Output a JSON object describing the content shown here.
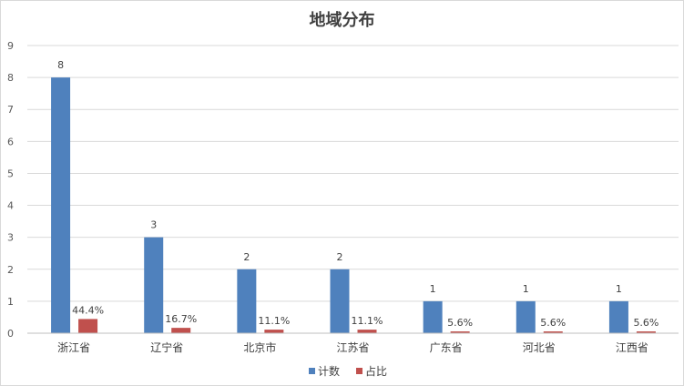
{
  "chart_data": {
    "type": "bar",
    "title": "地域分布",
    "categories": [
      "浙江省",
      "辽宁省",
      "北京市",
      "江苏省",
      "广东省",
      "河北省",
      "江西省"
    ],
    "series": [
      {
        "name": "计数",
        "values": [
          8,
          3,
          2,
          2,
          1,
          1,
          1
        ],
        "labels": [
          "8",
          "3",
          "2",
          "2",
          "1",
          "1",
          "1"
        ],
        "color": "#4F81BD"
      },
      {
        "name": "占比",
        "values": [
          0.444,
          0.167,
          0.111,
          0.111,
          0.056,
          0.056,
          0.056
        ],
        "labels": [
          "44.4%",
          "16.7%",
          "11.1%",
          "11.1%",
          "5.6%",
          "5.6%",
          "5.6%"
        ],
        "color": "#C0504D"
      }
    ],
    "ylim": [
      0,
      9
    ],
    "yticks": [
      "0",
      "1",
      "2",
      "3",
      "4",
      "5",
      "6",
      "7",
      "8",
      "9"
    ],
    "grid": true,
    "legend_position": "bottom"
  }
}
